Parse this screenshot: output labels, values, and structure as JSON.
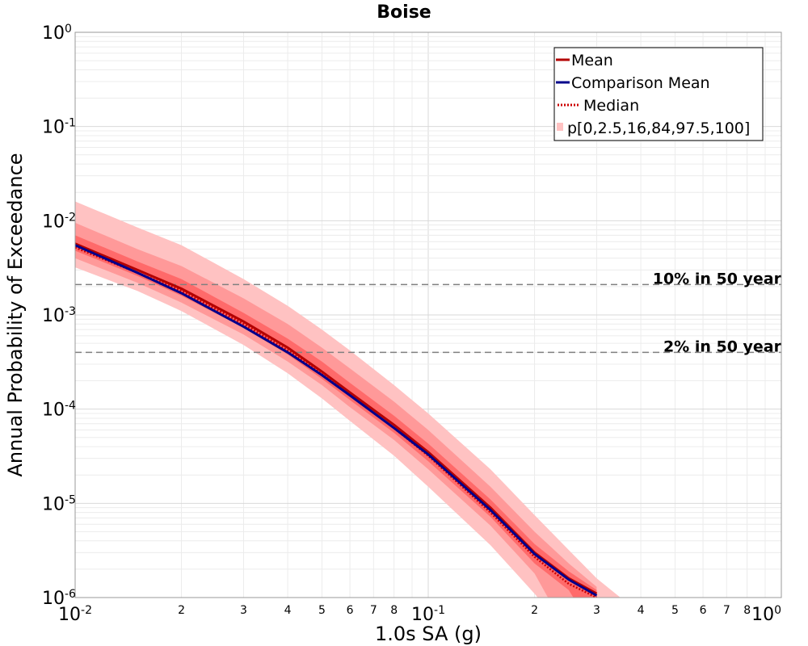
{
  "chart_data": {
    "type": "line",
    "title": "Boise",
    "xlabel": "1.0s SA (g)",
    "ylabel": "Annual Probability of Exceedance",
    "xscale": "log",
    "yscale": "log",
    "xlim": [
      0.01,
      1
    ],
    "ylim": [
      1e-06,
      1
    ],
    "grid": true,
    "legend_position": "top-right",
    "x_major_ticks": [
      {
        "base": "10",
        "exp": "-2"
      },
      {
        "base": "10",
        "exp": "-1"
      },
      {
        "base": "10",
        "exp": "0"
      }
    ],
    "y_major_ticks": [
      {
        "base": "10",
        "exp": "-6"
      },
      {
        "base": "10",
        "exp": "-5"
      },
      {
        "base": "10",
        "exp": "-4"
      },
      {
        "base": "10",
        "exp": "-3"
      },
      {
        "base": "10",
        "exp": "-2"
      },
      {
        "base": "10",
        "exp": "-1"
      },
      {
        "base": "10",
        "exp": "0"
      }
    ],
    "x_minor_tick_labels": [
      "2",
      "3",
      "4",
      "5",
      "6",
      "7",
      "8"
    ],
    "x": [
      0.01,
      0.015,
      0.02,
      0.03,
      0.04,
      0.05,
      0.06,
      0.08,
      0.1,
      0.15,
      0.2,
      0.25,
      0.3,
      0.35
    ],
    "series": [
      {
        "name": "Mean",
        "color": "#b30000",
        "style": "solid",
        "values": [
          0.0057,
          0.003,
          0.0019,
          0.00085,
          0.00045,
          0.00025,
          0.00015,
          6.8e-05,
          3.5e-05,
          9e-06,
          3e-06,
          1.6e-06,
          1.1e-06,
          null
        ]
      },
      {
        "name": "Comparison Mean",
        "color": "#00008b",
        "style": "solid",
        "values": [
          0.0055,
          0.0028,
          0.0017,
          0.00075,
          0.0004,
          0.00023,
          0.00014,
          6.3e-05,
          3.3e-05,
          8.5e-06,
          2.9e-06,
          1.55e-06,
          1.05e-06,
          null
        ]
      },
      {
        "name": "Median",
        "color": "#cc0000",
        "style": "dotted",
        "values": [
          0.0052,
          0.0028,
          0.0018,
          0.0008,
          0.00042,
          0.00024,
          0.00014,
          6.3e-05,
          3.2e-05,
          8e-06,
          2.7e-06,
          1.4e-06,
          1e-06,
          null
        ]
      }
    ],
    "bands": {
      "name": "p[0,2.5,16,84,97.5,100]",
      "colors": [
        "#ffc2c2",
        "#ff9999",
        "#ff6a6a"
      ],
      "outer": {
        "lower": [
          0.0032,
          0.0018,
          0.0011,
          0.00048,
          0.00024,
          0.00013,
          7.5e-05,
          3.2e-05,
          1.5e-05,
          3.6e-06,
          1.1e-06,
          null,
          null,
          null
        ],
        "upper": [
          0.016,
          0.0085,
          0.0055,
          0.0024,
          0.00125,
          0.0007,
          0.00042,
          0.00018,
          9e-05,
          2.3e-05,
          7.5e-06,
          3.2e-06,
          1.6e-06,
          1e-06
        ]
      },
      "middle": {
        "lower": [
          0.004,
          0.0022,
          0.00135,
          0.00062,
          0.00032,
          0.00018,
          0.000105,
          4.7e-05,
          2.3e-05,
          5.8e-06,
          1.8e-06,
          null,
          null,
          null
        ],
        "upper": [
          0.0095,
          0.005,
          0.0033,
          0.0015,
          0.0008,
          0.00045,
          0.00027,
          0.00012,
          6e-05,
          1.5e-05,
          5e-06,
          2.3e-06,
          1.3e-06,
          null
        ]
      },
      "inner": {
        "lower": [
          0.0048,
          0.0026,
          0.0016,
          0.00073,
          0.00038,
          0.00021,
          0.000125,
          5.6e-05,
          2.8e-05,
          7.2e-06,
          2.3e-06,
          1.2e-06,
          null,
          null
        ],
        "upper": [
          0.007,
          0.0037,
          0.0024,
          0.00105,
          0.00056,
          0.00032,
          0.00019,
          8.5e-05,
          4.3e-05,
          1.1e-05,
          3.7e-06,
          1.9e-06,
          1.2e-06,
          null
        ]
      }
    },
    "reference_lines": [
      {
        "label": "10% in 50 year",
        "y": 0.0021,
        "color": "#808080",
        "style": "dashed"
      },
      {
        "label": "2% in 50 year",
        "y": 0.0004,
        "color": "#808080",
        "style": "dashed"
      }
    ]
  }
}
